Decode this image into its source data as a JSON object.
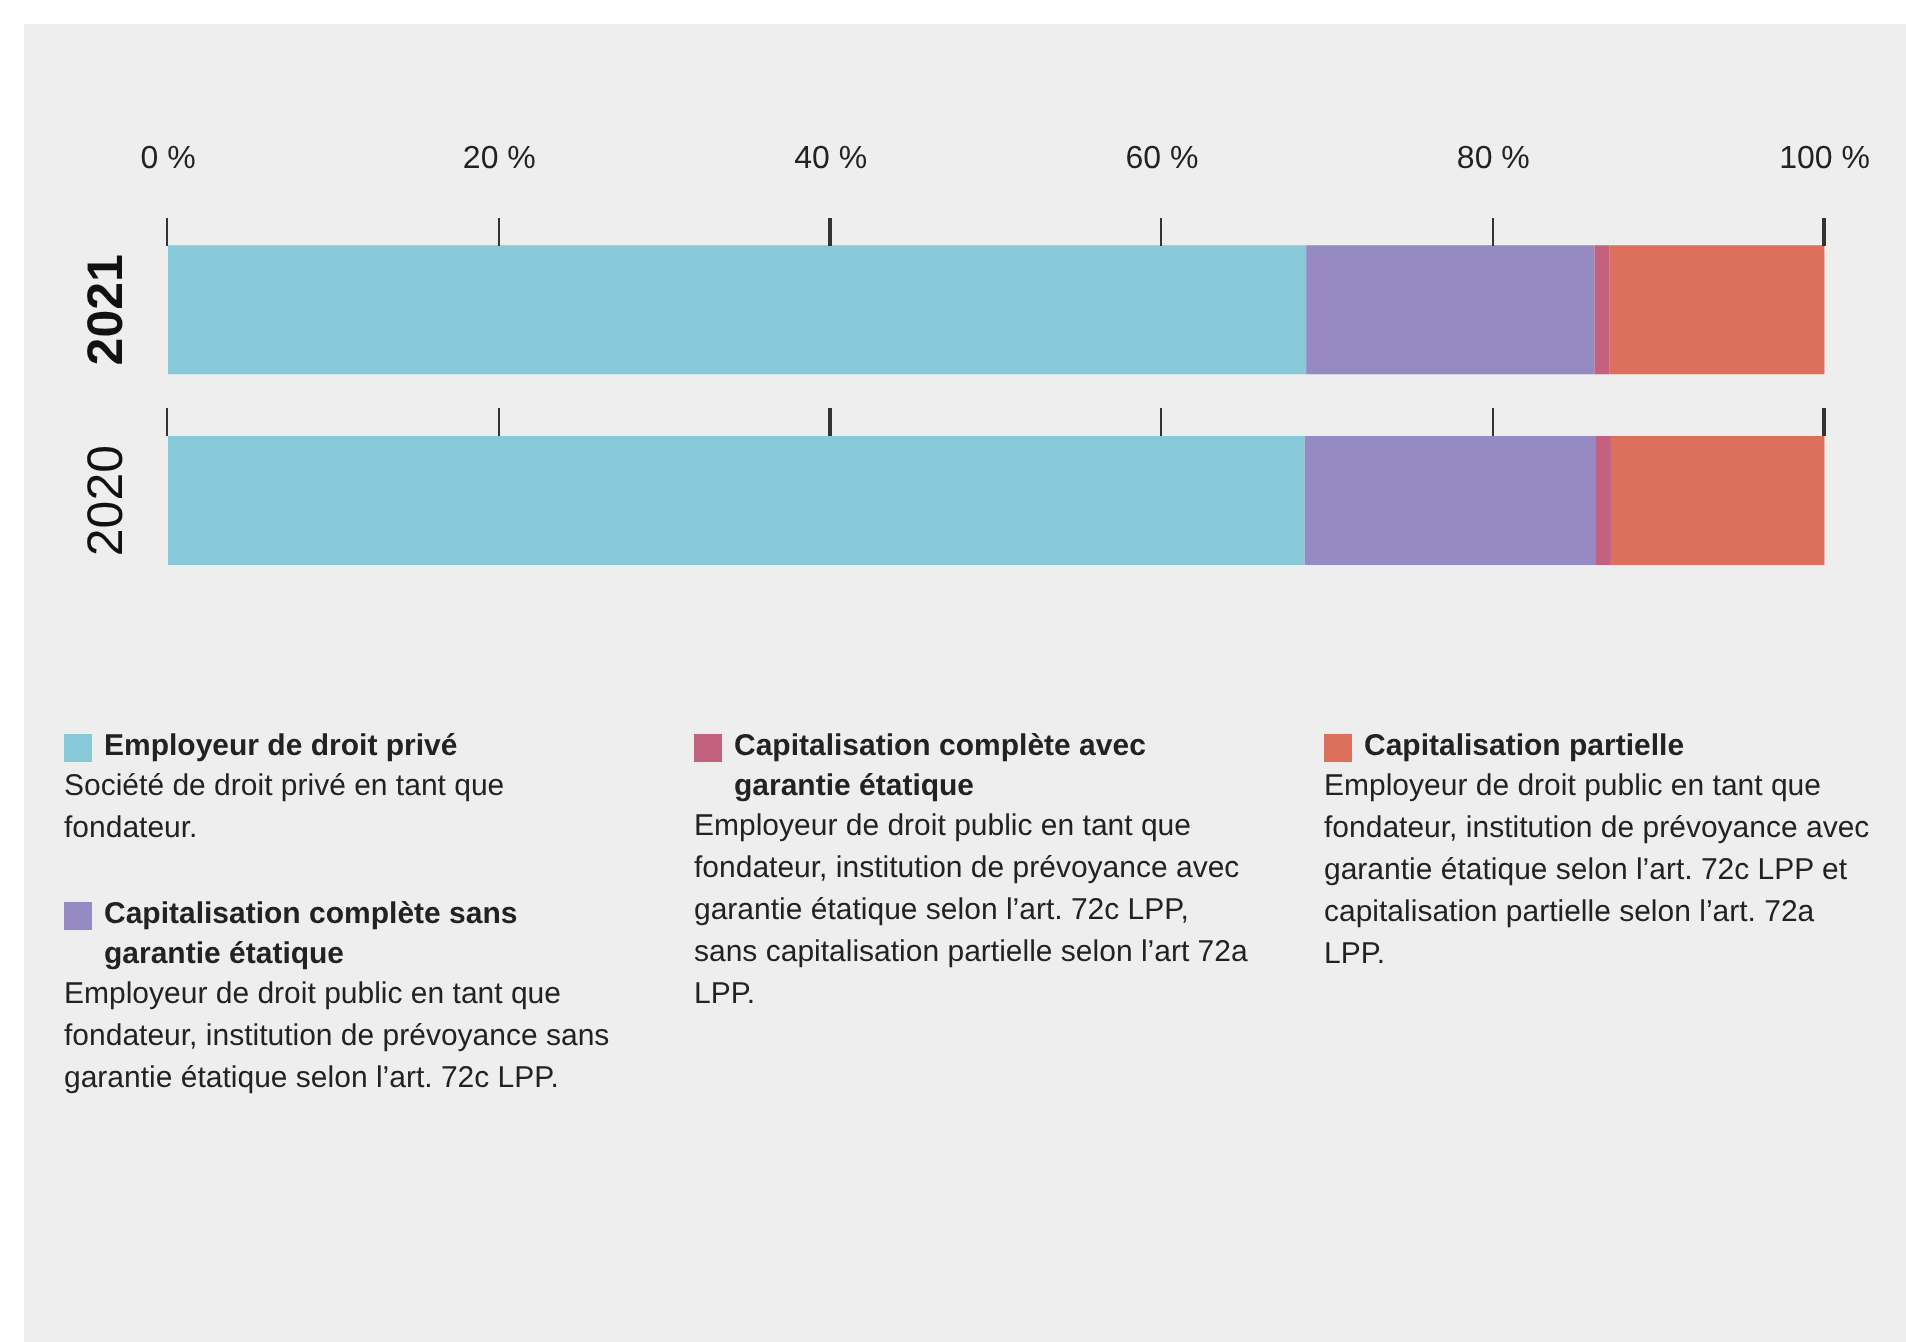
{
  "chart_data": {
    "type": "bar",
    "orientation": "horizontal",
    "stacked": true,
    "categories": [
      "2021",
      "2020"
    ],
    "series": [
      {
        "name": "Employeur de droit privé",
        "color": "#88c9d9",
        "values": [
          68.7,
          68.6
        ]
      },
      {
        "name": "Capitalisation complète sans garantie étatique",
        "color": "#958ac1",
        "values": [
          17.4,
          17.6
        ]
      },
      {
        "name": "Capitalisation complète avec garantie étatique",
        "color": "#c4617e",
        "values": [
          0.9,
          0.9
        ]
      },
      {
        "name": "Capitalisation partielle",
        "color": "#dd705c",
        "values": [
          13.0,
          12.9
        ]
      }
    ],
    "xlim": [
      0,
      100
    ],
    "xticks": [
      {
        "value": 0,
        "label": "0 %"
      },
      {
        "value": 20,
        "label": "20 %"
      },
      {
        "value": 40,
        "label": "40 %"
      },
      {
        "value": 60,
        "label": "60 %"
      },
      {
        "value": 80,
        "label": "80 %"
      },
      {
        "value": 100,
        "label": "100 %"
      }
    ],
    "grid": false,
    "legend": "bottom",
    "annotations": [
      "Société de droit privé en tant que fondateur.",
      "Employeur de droit public en tant que fondateur, institution de prévoyance sans garantie étatique selon l’art. 72c LPP.",
      "Employeur de droit public en tant que fondateur, institution de prévoyance avec garantie étatique selon l’art. 72c LPP, sans capitalisation partielle selon l’art 72a LPP.",
      "Employeur de droit public en tant que fondateur, institution de prévoyance avec garantie étatique selon l’art. 72c LPP et capitalisation partielle selon l’art. 72a LPP."
    ]
  }
}
